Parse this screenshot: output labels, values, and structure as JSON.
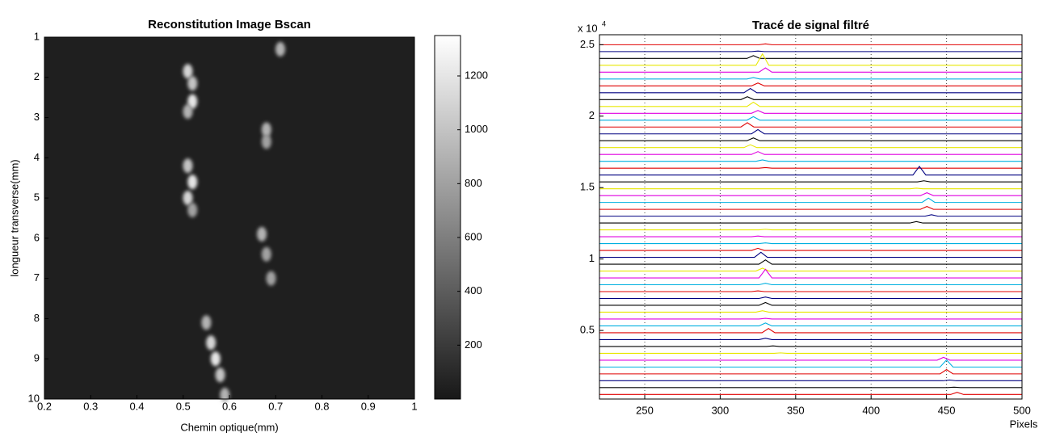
{
  "chart_data": [
    {
      "type": "heatmap",
      "title": "Reconstitution Image Bscan",
      "x_label": "Chemin optique(mm)",
      "y_label": "longueur transverse(mm)",
      "xlim": [
        0.2,
        1
      ],
      "xticks": [
        0.2,
        0.3,
        0.4,
        0.5,
        0.6,
        0.7,
        0.8,
        0.9,
        1
      ],
      "ylim": [
        1,
        10
      ],
      "yticks": [
        1,
        2,
        3,
        4,
        5,
        6,
        7,
        8,
        9,
        10
      ],
      "y_reversed": true,
      "colormap": "gray",
      "clim": [
        0,
        1350
      ],
      "cticks": [
        200,
        400,
        600,
        800,
        1000,
        1200
      ],
      "background_value": 40,
      "spots": {
        "x": [
          0.71,
          0.51,
          0.52,
          0.52,
          0.51,
          0.68,
          0.68,
          0.51,
          0.52,
          0.51,
          0.52,
          0.67,
          0.68,
          0.69,
          0.55,
          0.56,
          0.57,
          0.58,
          0.59
        ],
        "y": [
          1.3,
          1.85,
          2.15,
          2.6,
          2.85,
          3.3,
          3.6,
          4.2,
          4.6,
          5,
          5.3,
          5.9,
          6.4,
          7,
          8.1,
          8.6,
          9,
          9.4,
          9.9
        ],
        "values": [
          900,
          1100,
          1000,
          1200,
          900,
          900,
          800,
          1000,
          1200,
          1100,
          800,
          900,
          800,
          800,
          900,
          1100,
          1200,
          1000,
          900
        ]
      }
    },
    {
      "type": "stacked-lines",
      "title": "Tracé de signal filtré",
      "x_label": "Pixels",
      "y_scale_label": "x 10",
      "y_scale_exponent": "4",
      "xlim": [
        220,
        500
      ],
      "xticks": [
        250,
        300,
        350,
        400,
        450,
        500
      ],
      "ylim": [
        0.02,
        2.57
      ],
      "yticks": [
        0.5,
        1,
        1.5,
        2,
        2.5
      ],
      "grid": "x",
      "series": [
        {
          "color": "#e00000",
          "baseline": 2.5,
          "peak_x": 330,
          "peak": 0.006
        },
        {
          "color": "#000080",
          "baseline": 2.452,
          "peak_x": 325,
          "peak": 0.004
        },
        {
          "color": "#000000",
          "baseline": 2.404,
          "peak_x": 322,
          "peak": 0.02
        },
        {
          "color": "#e8e800",
          "baseline": 2.356,
          "peak_x": 328,
          "peak": 0.08
        },
        {
          "color": "#e000e0",
          "baseline": 2.308,
          "peak_x": 330,
          "peak": 0.03
        },
        {
          "color": "#00b0e0",
          "baseline": 2.26,
          "peak_x": 322,
          "peak": 0.01
        },
        {
          "color": "#e00000",
          "baseline": 2.212,
          "peak_x": 325,
          "peak": 0.02
        },
        {
          "color": "#000080",
          "baseline": 2.164,
          "peak_x": 320,
          "peak": 0.03
        },
        {
          "color": "#000000",
          "baseline": 2.116,
          "peak_x": 318,
          "peak": 0.02
        },
        {
          "color": "#e8e800",
          "baseline": 2.068,
          "peak_x": 322,
          "peak": 0.03
        },
        {
          "color": "#e000e0",
          "baseline": 2.02,
          "peak_x": 325,
          "peak": 0.02
        },
        {
          "color": "#00b0e0",
          "baseline": 1.972,
          "peak_x": 322,
          "peak": 0.025
        },
        {
          "color": "#e00000",
          "baseline": 1.924,
          "peak_x": 318,
          "peak": 0.03
        },
        {
          "color": "#000080",
          "baseline": 1.876,
          "peak_x": 325,
          "peak": 0.03
        },
        {
          "color": "#000000",
          "baseline": 1.828,
          "peak_x": 322,
          "peak": 0.02
        },
        {
          "color": "#e8e800",
          "baseline": 1.78,
          "peak_x": 320,
          "peak": 0.02
        },
        {
          "color": "#e000e0",
          "baseline": 1.732,
          "peak_x": 325,
          "peak": 0.02
        },
        {
          "color": "#00b0e0",
          "baseline": 1.684,
          "peak_x": 328,
          "peak": 0.01
        },
        {
          "color": "#e00000",
          "baseline": 1.636,
          "peak_x": 330,
          "peak": 0.004
        },
        {
          "color": "#000080",
          "baseline": 1.588,
          "peak_x": 432,
          "peak": 0.06
        },
        {
          "color": "#000000",
          "baseline": 1.54,
          "peak_x": 435,
          "peak": 0.008
        },
        {
          "color": "#e8e800",
          "baseline": 1.492,
          "peak_x": 430,
          "peak": 0.004
        },
        {
          "color": "#e000e0",
          "baseline": 1.444,
          "peak_x": 437,
          "peak": 0.02
        },
        {
          "color": "#00b0e0",
          "baseline": 1.396,
          "peak_x": 438,
          "peak": 0.03
        },
        {
          "color": "#e00000",
          "baseline": 1.348,
          "peak_x": 437,
          "peak": 0.02
        },
        {
          "color": "#000080",
          "baseline": 1.3,
          "peak_x": 440,
          "peak": 0.01
        },
        {
          "color": "#000000",
          "baseline": 1.252,
          "peak_x": 430,
          "peak": 0.01
        },
        {
          "color": "#e8e800",
          "baseline": 1.204,
          "peak_x": 330,
          "peak": 0.004
        },
        {
          "color": "#e000e0",
          "baseline": 1.156,
          "peak_x": 325,
          "peak": 0.005
        },
        {
          "color": "#00b0e0",
          "baseline": 1.108,
          "peak_x": 330,
          "peak": 0.005
        },
        {
          "color": "#e00000",
          "baseline": 1.06,
          "peak_x": 325,
          "peak": 0.015
        },
        {
          "color": "#000080",
          "baseline": 1.012,
          "peak_x": 327,
          "peak": 0.035
        },
        {
          "color": "#000000",
          "baseline": 0.964,
          "peak_x": 330,
          "peak": 0.03
        },
        {
          "color": "#e8e800",
          "baseline": 0.916,
          "peak_x": 328,
          "peak": 0.02
        },
        {
          "color": "#e000e0",
          "baseline": 0.868,
          "peak_x": 330,
          "peak": 0.06
        },
        {
          "color": "#00b0e0",
          "baseline": 0.82,
          "peak_x": 330,
          "peak": 0.01
        },
        {
          "color": "#e00000",
          "baseline": 0.772,
          "peak_x": 325,
          "peak": 0.005
        },
        {
          "color": "#000080",
          "baseline": 0.724,
          "peak_x": 330,
          "peak": 0.01
        },
        {
          "color": "#000000",
          "baseline": 0.676,
          "peak_x": 330,
          "peak": 0.02
        },
        {
          "color": "#e8e800",
          "baseline": 0.628,
          "peak_x": 328,
          "peak": 0.01
        },
        {
          "color": "#e000e0",
          "baseline": 0.58,
          "peak_x": 330,
          "peak": 0.005
        },
        {
          "color": "#00b0e0",
          "baseline": 0.532,
          "peak_x": 330,
          "peak": 0.02
        },
        {
          "color": "#e00000",
          "baseline": 0.484,
          "peak_x": 332,
          "peak": 0.03
        },
        {
          "color": "#000080",
          "baseline": 0.436,
          "peak_x": 330,
          "peak": 0.01
        },
        {
          "color": "#000000",
          "baseline": 0.388,
          "peak_x": 335,
          "peak": 0.004
        },
        {
          "color": "#e8e800",
          "baseline": 0.34,
          "peak_x": 340,
          "peak": 0.003
        },
        {
          "color": "#e000e0",
          "baseline": 0.292,
          "peak_x": 448,
          "peak": 0.02
        },
        {
          "color": "#00b0e0",
          "baseline": 0.244,
          "peak_x": 450,
          "peak": 0.05
        },
        {
          "color": "#e00000",
          "baseline": 0.196,
          "peak_x": 450,
          "peak": 0.03
        },
        {
          "color": "#000080",
          "baseline": 0.148,
          "peak_x": 452,
          "peak": 0.005
        },
        {
          "color": "#000000",
          "baseline": 0.1,
          "peak_x": 455,
          "peak": 0.003
        },
        {
          "color": "#e00000",
          "baseline": 0.052,
          "peak_x": 457,
          "peak": 0.015
        }
      ]
    }
  ]
}
